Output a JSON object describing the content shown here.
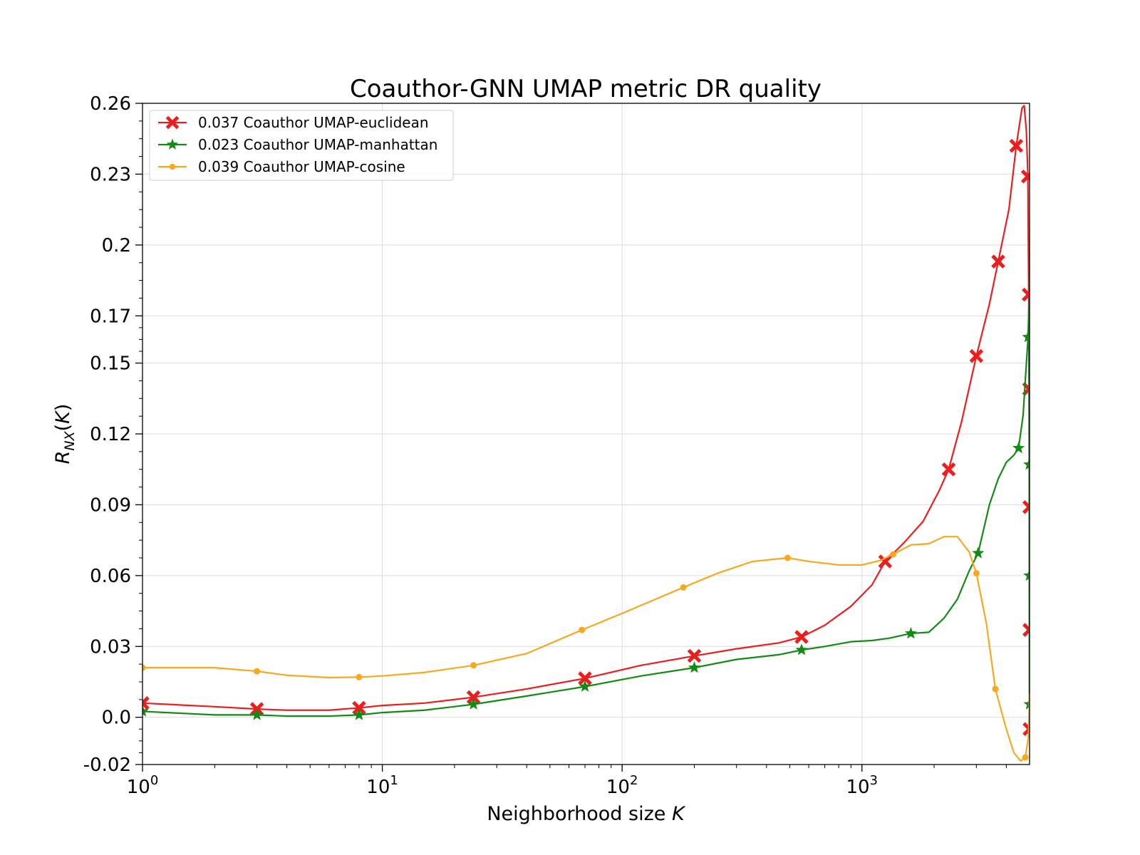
{
  "chart_data": {
    "type": "line",
    "title": "Coauthor-GNN UMAP metric DR quality",
    "xlabel": "Neighborhood size K",
    "ylabel": "R_NX(K)",
    "xscale": "log",
    "xlim": [
      1,
      5000
    ],
    "ylim": [
      -0.02,
      0.26
    ],
    "yticks": [
      -0.02,
      0.0,
      0.03,
      0.06,
      0.09,
      0.12,
      0.15,
      0.17,
      0.2,
      0.23,
      0.26
    ],
    "ytick_labels": [
      "-0.02",
      "0.0",
      "0.03",
      "0.06",
      "0.09",
      "0.12",
      "0.15",
      "0.17",
      "0.2",
      "0.23",
      "0.26"
    ],
    "xticks": [
      1,
      10,
      100,
      1000
    ],
    "xtick_labels": [
      {
        "base": "10",
        "exp": "0"
      },
      {
        "base": "10",
        "exp": "1"
      },
      {
        "base": "10",
        "exp": "2"
      },
      {
        "base": "10",
        "exp": "3"
      }
    ],
    "grid": true,
    "legend_position": "top-left",
    "series": [
      {
        "name": "0.037 Coauthor UMAP-euclidean",
        "color": "#ee1c1c",
        "marker": "x",
        "points": [
          [
            1,
            0.006
          ],
          [
            2,
            0.0045
          ],
          [
            3,
            0.0035
          ],
          [
            4,
            0.003
          ],
          [
            6,
            0.003
          ],
          [
            8,
            0.004
          ],
          [
            10,
            0.005
          ],
          [
            15,
            0.006
          ],
          [
            24,
            0.0085
          ],
          [
            40,
            0.012
          ],
          [
            70,
            0.0165
          ],
          [
            120,
            0.022
          ],
          [
            200,
            0.026
          ],
          [
            300,
            0.029
          ],
          [
            450,
            0.0315
          ],
          [
            560,
            0.034
          ],
          [
            700,
            0.039
          ],
          [
            900,
            0.047
          ],
          [
            1100,
            0.056
          ],
          [
            1250,
            0.066
          ],
          [
            1500,
            0.074
          ],
          [
            1800,
            0.083
          ],
          [
            2100,
            0.096
          ],
          [
            2300,
            0.105
          ],
          [
            2600,
            0.125
          ],
          [
            3000,
            0.153
          ],
          [
            3400,
            0.175
          ],
          [
            3700,
            0.193
          ],
          [
            4100,
            0.215
          ],
          [
            4400,
            0.242
          ],
          [
            4650,
            0.258
          ],
          [
            4750,
            0.259
          ],
          [
            4850,
            0.248
          ],
          [
            4920,
            0.229
          ],
          [
            4960,
            0.179
          ],
          [
            4980,
            0.139
          ],
          [
            4990,
            0.089
          ],
          [
            4995,
            0.037
          ],
          [
            4999,
            -0.005
          ]
        ],
        "markers": [
          [
            1,
            0.006
          ],
          [
            3,
            0.0035
          ],
          [
            8,
            0.004
          ],
          [
            24,
            0.0085
          ],
          [
            70,
            0.0165
          ],
          [
            200,
            0.026
          ],
          [
            560,
            0.034
          ],
          [
            1250,
            0.066
          ],
          [
            2300,
            0.105
          ],
          [
            3000,
            0.153
          ],
          [
            3700,
            0.193
          ],
          [
            4400,
            0.242
          ],
          [
            4920,
            0.229
          ],
          [
            4960,
            0.179
          ],
          [
            4980,
            0.139
          ],
          [
            4990,
            0.089
          ],
          [
            4995,
            0.037
          ],
          [
            4999,
            -0.005
          ]
        ]
      },
      {
        "name": "0.023 Coauthor UMAP-manhattan",
        "color": "#138a13",
        "marker": "star",
        "points": [
          [
            1,
            0.0025
          ],
          [
            2,
            0.001
          ],
          [
            3,
            0.001
          ],
          [
            4,
            0.0005
          ],
          [
            6,
            0.0005
          ],
          [
            8,
            0.001
          ],
          [
            10,
            0.002
          ],
          [
            15,
            0.003
          ],
          [
            24,
            0.0055
          ],
          [
            40,
            0.009
          ],
          [
            70,
            0.013
          ],
          [
            120,
            0.0175
          ],
          [
            200,
            0.021
          ],
          [
            300,
            0.0245
          ],
          [
            450,
            0.0265
          ],
          [
            560,
            0.0285
          ],
          [
            700,
            0.03
          ],
          [
            900,
            0.032
          ],
          [
            1100,
            0.0325
          ],
          [
            1300,
            0.0335
          ],
          [
            1600,
            0.0355
          ],
          [
            1900,
            0.036
          ],
          [
            2200,
            0.042
          ],
          [
            2500,
            0.05
          ],
          [
            2800,
            0.062
          ],
          [
            3050,
            0.0695
          ],
          [
            3400,
            0.09
          ],
          [
            3700,
            0.101
          ],
          [
            4000,
            0.108
          ],
          [
            4300,
            0.111
          ],
          [
            4500,
            0.114
          ],
          [
            4700,
            0.128
          ],
          [
            4850,
            0.15
          ],
          [
            4930,
            0.161
          ],
          [
            4970,
            0.175
          ],
          [
            4985,
            0.107
          ],
          [
            4992,
            0.06
          ],
          [
            4998,
            0.0055
          ]
        ],
        "markers": [
          [
            1,
            0.0025
          ],
          [
            3,
            0.001
          ],
          [
            8,
            0.001
          ],
          [
            24,
            0.0055
          ],
          [
            70,
            0.013
          ],
          [
            200,
            0.021
          ],
          [
            560,
            0.0285
          ],
          [
            1600,
            0.0355
          ],
          [
            3050,
            0.0695
          ],
          [
            4500,
            0.114
          ],
          [
            4930,
            0.161
          ],
          [
            4985,
            0.107
          ],
          [
            4992,
            0.06
          ],
          [
            4998,
            0.0055
          ]
        ]
      },
      {
        "name": "0.039 Coauthor UMAP-cosine",
        "color": "#f8a81c",
        "marker": "dot",
        "points": [
          [
            1,
            0.021
          ],
          [
            2,
            0.021
          ],
          [
            3,
            0.0195
          ],
          [
            4,
            0.0178
          ],
          [
            6,
            0.0168
          ],
          [
            8,
            0.017
          ],
          [
            10,
            0.0175
          ],
          [
            15,
            0.019
          ],
          [
            24,
            0.022
          ],
          [
            40,
            0.027
          ],
          [
            68,
            0.037
          ],
          [
            100,
            0.044
          ],
          [
            180,
            0.055
          ],
          [
            250,
            0.061
          ],
          [
            350,
            0.066
          ],
          [
            490,
            0.0675
          ],
          [
            600,
            0.066
          ],
          [
            800,
            0.0645
          ],
          [
            1000,
            0.0645
          ],
          [
            1200,
            0.0665
          ],
          [
            1350,
            0.069
          ],
          [
            1600,
            0.073
          ],
          [
            1900,
            0.0735
          ],
          [
            2200,
            0.0765
          ],
          [
            2500,
            0.0765
          ],
          [
            2800,
            0.07
          ],
          [
            3000,
            0.061
          ],
          [
            3300,
            0.04
          ],
          [
            3600,
            0.012
          ],
          [
            4000,
            -0.005
          ],
          [
            4300,
            -0.015
          ],
          [
            4600,
            -0.0185
          ],
          [
            4800,
            -0.017
          ],
          [
            4950,
            -0.008
          ],
          [
            4999,
            0.01
          ]
        ],
        "markers": [
          [
            1,
            0.021
          ],
          [
            3,
            0.0195
          ],
          [
            8,
            0.017
          ],
          [
            24,
            0.022
          ],
          [
            68,
            0.037
          ],
          [
            180,
            0.055
          ],
          [
            490,
            0.0675
          ],
          [
            1350,
            0.069
          ],
          [
            3000,
            0.061
          ],
          [
            3600,
            0.012
          ],
          [
            4800,
            -0.017
          ]
        ]
      }
    ]
  }
}
